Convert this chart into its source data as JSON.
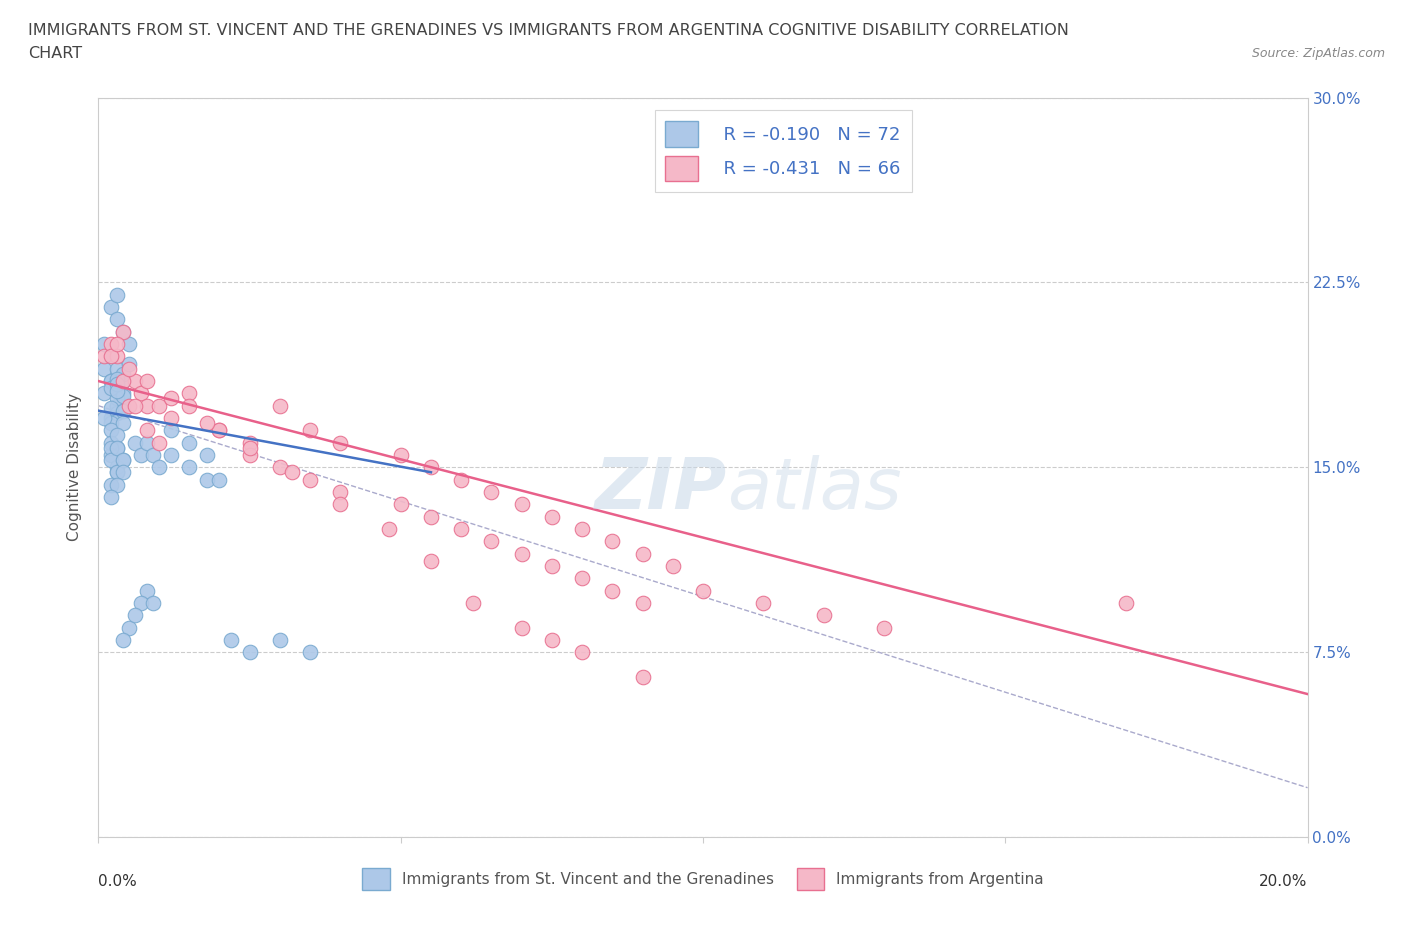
{
  "title_line1": "IMMIGRANTS FROM ST. VINCENT AND THE GRENADINES VS IMMIGRANTS FROM ARGENTINA COGNITIVE DISABILITY CORRELATION",
  "title_line2": "CHART",
  "source_text": "Source: ZipAtlas.com",
  "ylabel": "Cognitive Disability",
  "xlim": [
    0.0,
    0.2
  ],
  "ylim": [
    0.0,
    0.3
  ],
  "xticks": [
    0.0,
    0.05,
    0.1,
    0.15,
    0.2
  ],
  "yticks": [
    0.0,
    0.075,
    0.15,
    0.225,
    0.3
  ],
  "xtick_labels_ends": [
    "0.0%",
    "20.0%"
  ],
  "ytick_labels": [
    "0.0%",
    "7.5%",
    "15.0%",
    "22.5%",
    "30.0%"
  ],
  "watermark_zip": "ZIP",
  "watermark_atlas": "atlas",
  "series": [
    {
      "name": "Immigrants from St. Vincent and the Grenadines",
      "color": "#adc8e8",
      "edge_color": "#7aaad0",
      "r": -0.19,
      "n": 72,
      "x": [
        0.001,
        0.002,
        0.001,
        0.003,
        0.002,
        0.003,
        0.004,
        0.003,
        0.005,
        0.004,
        0.002,
        0.001,
        0.003,
        0.003,
        0.002,
        0.004,
        0.004,
        0.003,
        0.002,
        0.003,
        0.003,
        0.002,
        0.002,
        0.004,
        0.005,
        0.003,
        0.002,
        0.004,
        0.003,
        0.003,
        0.001,
        0.002,
        0.002,
        0.003,
        0.002,
        0.003,
        0.004,
        0.003,
        0.004,
        0.004,
        0.003,
        0.002,
        0.002,
        0.003,
        0.002,
        0.003,
        0.004,
        0.004,
        0.003,
        0.002,
        0.006,
        0.007,
        0.008,
        0.009,
        0.01,
        0.012,
        0.015,
        0.018,
        0.02,
        0.022,
        0.025,
        0.03,
        0.035,
        0.012,
        0.015,
        0.018,
        0.008,
        0.007,
        0.005,
        0.004,
        0.006,
        0.009
      ],
      "y": [
        0.2,
        0.215,
        0.19,
        0.22,
        0.195,
        0.21,
        0.205,
        0.185,
        0.2,
        0.175,
        0.185,
        0.18,
        0.19,
        0.175,
        0.17,
        0.18,
        0.185,
        0.175,
        0.185,
        0.178,
        0.172,
        0.168,
        0.182,
        0.188,
        0.192,
        0.186,
        0.174,
        0.179,
        0.184,
        0.181,
        0.17,
        0.165,
        0.155,
        0.15,
        0.16,
        0.158,
        0.153,
        0.148,
        0.173,
        0.168,
        0.163,
        0.158,
        0.153,
        0.148,
        0.143,
        0.158,
        0.153,
        0.148,
        0.143,
        0.138,
        0.16,
        0.155,
        0.16,
        0.155,
        0.15,
        0.155,
        0.15,
        0.145,
        0.145,
        0.08,
        0.075,
        0.08,
        0.075,
        0.165,
        0.16,
        0.155,
        0.1,
        0.095,
        0.085,
        0.08,
        0.09,
        0.095
      ]
    },
    {
      "name": "Immigrants from Argentina",
      "color": "#f5b8c8",
      "edge_color": "#e87090",
      "r": -0.431,
      "n": 66,
      "x": [
        0.001,
        0.002,
        0.003,
        0.004,
        0.005,
        0.006,
        0.007,
        0.008,
        0.01,
        0.012,
        0.015,
        0.02,
        0.025,
        0.03,
        0.035,
        0.04,
        0.05,
        0.055,
        0.06,
        0.065,
        0.07,
        0.075,
        0.08,
        0.085,
        0.09,
        0.095,
        0.1,
        0.11,
        0.12,
        0.13,
        0.002,
        0.004,
        0.006,
        0.008,
        0.01,
        0.015,
        0.02,
        0.025,
        0.03,
        0.035,
        0.04,
        0.05,
        0.055,
        0.06,
        0.065,
        0.07,
        0.075,
        0.08,
        0.085,
        0.09,
        0.003,
        0.005,
        0.008,
        0.012,
        0.018,
        0.025,
        0.032,
        0.04,
        0.048,
        0.055,
        0.062,
        0.07,
        0.075,
        0.08,
        0.09,
        0.17
      ],
      "y": [
        0.195,
        0.2,
        0.195,
        0.205,
        0.175,
        0.185,
        0.18,
        0.175,
        0.175,
        0.17,
        0.18,
        0.165,
        0.16,
        0.175,
        0.165,
        0.16,
        0.155,
        0.15,
        0.145,
        0.14,
        0.135,
        0.13,
        0.125,
        0.12,
        0.115,
        0.11,
        0.1,
        0.095,
        0.09,
        0.085,
        0.195,
        0.185,
        0.175,
        0.165,
        0.16,
        0.175,
        0.165,
        0.155,
        0.15,
        0.145,
        0.14,
        0.135,
        0.13,
        0.125,
        0.12,
        0.115,
        0.11,
        0.105,
        0.1,
        0.095,
        0.2,
        0.19,
        0.185,
        0.178,
        0.168,
        0.158,
        0.148,
        0.135,
        0.125,
        0.112,
        0.095,
        0.085,
        0.08,
        0.075,
        0.065,
        0.095
      ]
    }
  ],
  "trend_line_blue": {
    "x_start": 0.0,
    "x_end": 0.055,
    "y_start": 0.173,
    "y_end": 0.148,
    "color": "#4472c4",
    "linewidth": 1.8
  },
  "trend_line_pink": {
    "x_start": 0.0,
    "x_end": 0.2,
    "y_start": 0.185,
    "y_end": 0.058,
    "color": "#e8608a",
    "linewidth": 1.8
  },
  "dash_line": {
    "x_start": 0.0,
    "x_end": 0.2,
    "y_start": 0.175,
    "y_end": 0.02,
    "color": "#aaaacc",
    "linewidth": 1.0,
    "linestyle": "--"
  },
  "legend_r1": "R = -0.190",
  "legend_n1": "N = 72",
  "legend_r2": "R = -0.431",
  "legend_n2": "N = 66",
  "blue_color": "#adc8e8",
  "pink_color": "#f5b8c8",
  "blue_edge": "#7aaad0",
  "pink_edge": "#e87090",
  "axis_color": "#cccccc",
  "grid_color": "#cccccc",
  "text_color": "#4472c4",
  "title_color": "#444444",
  "background_color": "#ffffff",
  "right_ytick_color": "#4472c4"
}
